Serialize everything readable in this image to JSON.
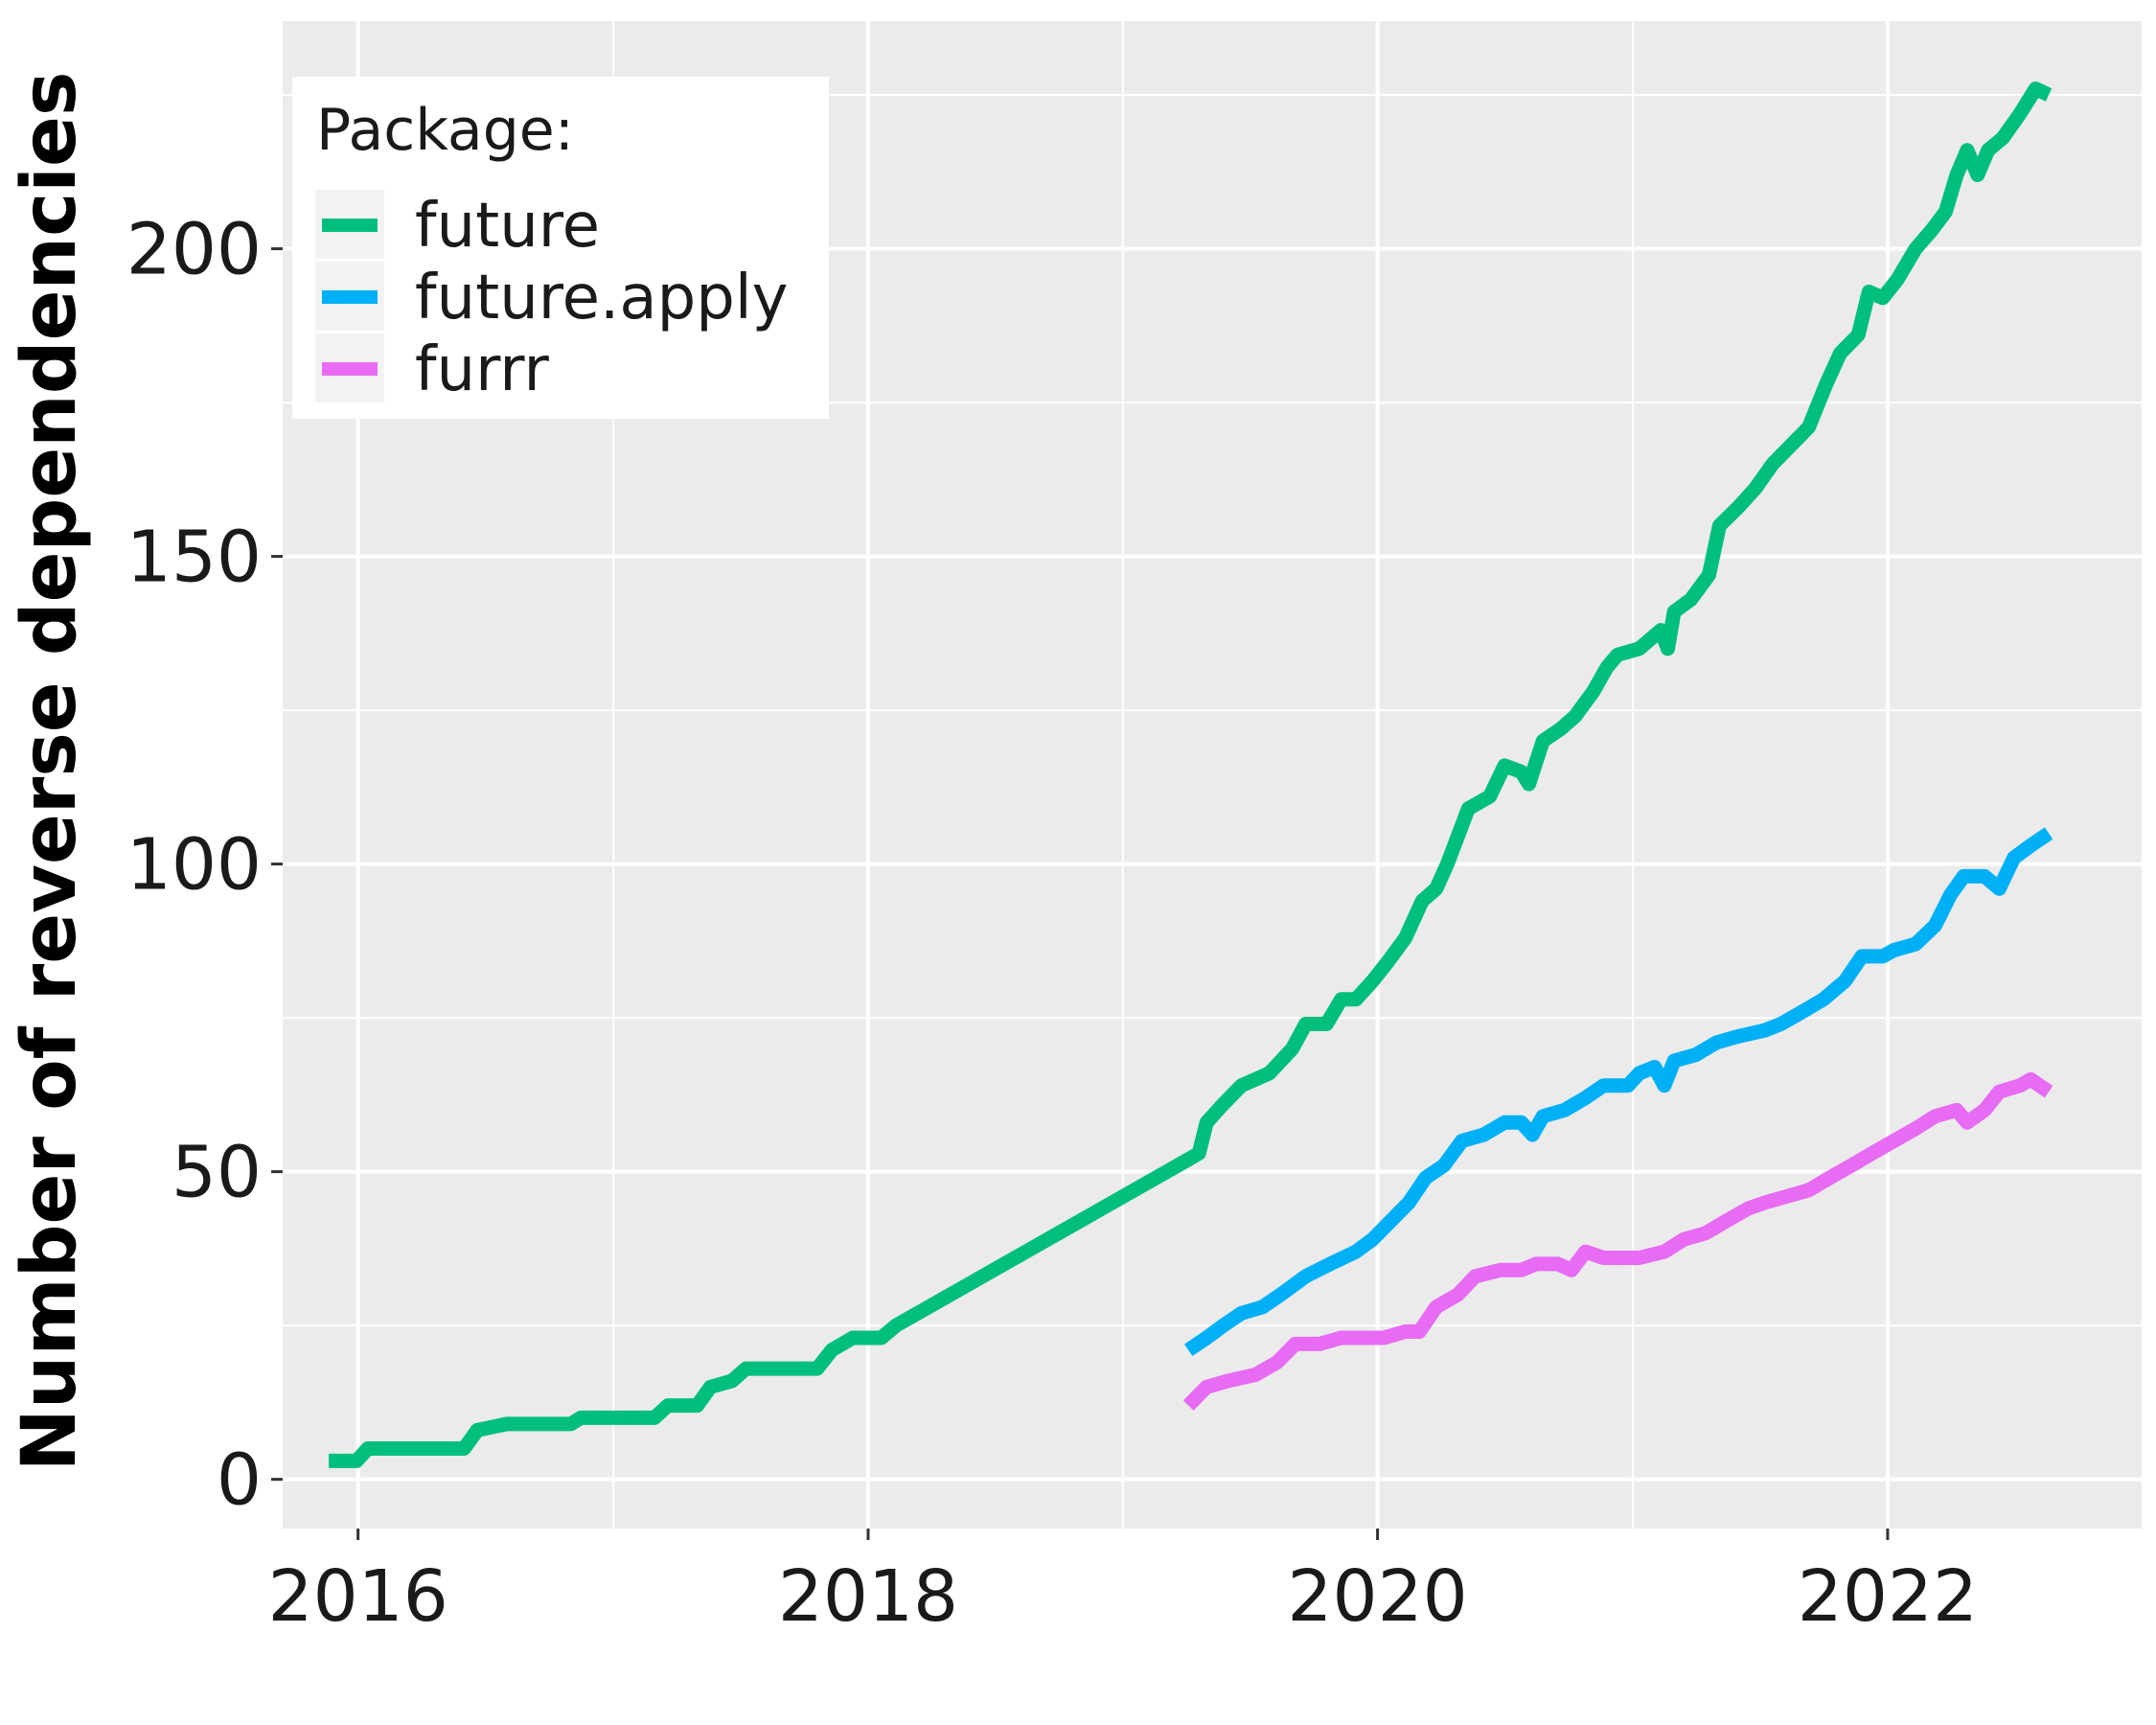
{
  "chart_data": {
    "type": "line",
    "title": "",
    "xlabel": "",
    "ylabel": "Number of reverse dependencies",
    "xlim": [
      "2015-09-15",
      "2022-12-31"
    ],
    "ylim": [
      -8,
      237
    ],
    "x_ticks": [
      {
        "date": "2016-01-01",
        "label": "2016"
      },
      {
        "date": "2018-01-01",
        "label": "2018"
      },
      {
        "date": "2020-01-01",
        "label": "2020"
      },
      {
        "date": "2022-01-01",
        "label": "2022"
      }
    ],
    "x_minor_ticks": [
      "2017-01-01",
      "2019-01-01",
      "2021-01-01"
    ],
    "y_ticks": [
      0,
      50,
      100,
      150,
      200
    ],
    "y_minor_ticks": [
      25,
      75,
      125,
      175,
      225
    ],
    "grid": true,
    "legend": {
      "title": "Package:",
      "position": "top-left"
    },
    "series": [
      {
        "name": "future",
        "color": "#00BF7D",
        "points": [
          [
            "2015-11-20",
            3
          ],
          [
            "2015-12-30",
            3
          ],
          [
            "2016-01-15",
            5
          ],
          [
            "2016-06-01",
            5
          ],
          [
            "2016-06-20",
            8
          ],
          [
            "2016-08-01",
            9
          ],
          [
            "2016-11-01",
            9
          ],
          [
            "2016-11-15",
            10
          ],
          [
            "2017-03-01",
            10
          ],
          [
            "2017-03-20",
            12
          ],
          [
            "2017-05-01",
            12
          ],
          [
            "2017-05-20",
            15
          ],
          [
            "2017-06-20",
            16
          ],
          [
            "2017-07-10",
            18
          ],
          [
            "2017-10-20",
            18
          ],
          [
            "2017-11-10",
            21
          ],
          [
            "2017-12-10",
            23
          ],
          [
            "2018-01-20",
            23
          ],
          [
            "2018-02-10",
            25
          ],
          [
            "2019-04-05",
            52
          ],
          [
            "2019-04-20",
            53
          ],
          [
            "2019-05-01",
            58
          ],
          [
            "2019-05-25",
            61
          ],
          [
            "2019-06-20",
            64
          ],
          [
            "2019-07-30",
            66
          ],
          [
            "2019-09-01",
            70
          ],
          [
            "2019-09-20",
            74
          ],
          [
            "2019-10-20",
            74
          ],
          [
            "2019-11-10",
            78
          ],
          [
            "2019-12-01",
            78
          ],
          [
            "2019-12-25",
            81
          ],
          [
            "2020-01-15",
            84
          ],
          [
            "2020-02-10",
            88
          ],
          [
            "2020-03-05",
            94
          ],
          [
            "2020-03-25",
            96
          ],
          [
            "2020-04-10",
            100
          ],
          [
            "2020-05-10",
            109
          ],
          [
            "2020-06-10",
            111
          ],
          [
            "2020-07-01",
            116
          ],
          [
            "2020-07-25",
            115
          ],
          [
            "2020-08-05",
            113
          ],
          [
            "2020-08-25",
            120
          ],
          [
            "2020-09-20",
            122
          ],
          [
            "2020-10-10",
            124
          ],
          [
            "2020-11-05",
            128
          ],
          [
            "2020-11-25",
            132
          ],
          [
            "2020-12-10",
            134
          ],
          [
            "2021-01-10",
            135
          ],
          [
            "2021-02-10",
            138
          ],
          [
            "2021-02-20",
            135
          ],
          [
            "2021-03-01",
            141
          ],
          [
            "2021-03-25",
            143
          ],
          [
            "2021-04-20",
            147
          ],
          [
            "2021-05-05",
            155
          ],
          [
            "2021-06-01",
            158
          ],
          [
            "2021-06-25",
            161
          ],
          [
            "2021-07-20",
            165
          ],
          [
            "2021-08-15",
            168
          ],
          [
            "2021-09-10",
            171
          ],
          [
            "2021-10-05",
            178
          ],
          [
            "2021-10-25",
            183
          ],
          [
            "2021-11-20",
            186
          ],
          [
            "2021-12-05",
            193
          ],
          [
            "2021-12-25",
            192
          ],
          [
            "2022-01-15",
            195
          ],
          [
            "2022-02-10",
            200
          ],
          [
            "2022-03-05",
            203
          ],
          [
            "2022-03-25",
            206
          ],
          [
            "2022-04-10",
            212
          ],
          [
            "2022-04-25",
            216
          ],
          [
            "2022-05-10",
            212
          ],
          [
            "2022-05-25",
            216
          ],
          [
            "2022-06-15",
            218
          ],
          [
            "2022-07-10",
            222
          ],
          [
            "2022-08-01",
            226
          ],
          [
            "2022-08-20",
            225
          ]
        ]
      },
      {
        "name": "future.apply",
        "color": "#00B0F6",
        "points": [
          [
            "2019-04-05",
            21
          ],
          [
            "2019-05-01",
            23
          ],
          [
            "2019-05-25",
            25
          ],
          [
            "2019-06-20",
            27
          ],
          [
            "2019-07-20",
            28
          ],
          [
            "2019-08-15",
            30
          ],
          [
            "2019-09-20",
            33
          ],
          [
            "2019-10-25",
            35
          ],
          [
            "2019-12-01",
            37
          ],
          [
            "2019-12-25",
            39
          ],
          [
            "2020-01-20",
            42
          ],
          [
            "2020-02-15",
            45
          ],
          [
            "2020-03-10",
            49
          ],
          [
            "2020-04-05",
            51
          ],
          [
            "2020-05-01",
            55
          ],
          [
            "2020-06-01",
            56
          ],
          [
            "2020-07-01",
            58
          ],
          [
            "2020-07-25",
            58
          ],
          [
            "2020-08-10",
            56
          ],
          [
            "2020-08-25",
            59
          ],
          [
            "2020-09-25",
            60
          ],
          [
            "2020-10-25",
            62
          ],
          [
            "2020-11-20",
            64
          ],
          [
            "2020-12-25",
            64
          ],
          [
            "2021-01-10",
            66
          ],
          [
            "2021-02-01",
            67
          ],
          [
            "2021-02-15",
            64
          ],
          [
            "2021-03-01",
            68
          ],
          [
            "2021-04-01",
            69
          ],
          [
            "2021-05-01",
            71
          ],
          [
            "2021-06-01",
            72
          ],
          [
            "2021-07-10",
            73
          ],
          [
            "2021-08-01",
            74
          ],
          [
            "2021-09-01",
            76
          ],
          [
            "2021-10-01",
            78
          ],
          [
            "2021-11-01",
            81
          ],
          [
            "2021-11-25",
            85
          ],
          [
            "2021-12-25",
            85
          ],
          [
            "2022-01-10",
            86
          ],
          [
            "2022-02-10",
            87
          ],
          [
            "2022-03-10",
            90
          ],
          [
            "2022-04-01",
            95
          ],
          [
            "2022-04-20",
            98
          ],
          [
            "2022-05-20",
            98
          ],
          [
            "2022-06-10",
            96
          ],
          [
            "2022-07-01",
            101
          ],
          [
            "2022-07-25",
            103
          ],
          [
            "2022-08-20",
            105
          ]
        ]
      },
      {
        "name": "furrr",
        "color": "#E76BF3",
        "points": [
          [
            "2019-04-05",
            12
          ],
          [
            "2019-05-01",
            15
          ],
          [
            "2019-06-01",
            16
          ],
          [
            "2019-07-10",
            17
          ],
          [
            "2019-08-10",
            19
          ],
          [
            "2019-09-05",
            22
          ],
          [
            "2019-10-10",
            22
          ],
          [
            "2019-11-10",
            23
          ],
          [
            "2019-12-10",
            23
          ],
          [
            "2020-01-10",
            23
          ],
          [
            "2020-02-10",
            24
          ],
          [
            "2020-03-01",
            24
          ],
          [
            "2020-03-25",
            28
          ],
          [
            "2020-04-25",
            30
          ],
          [
            "2020-05-20",
            33
          ],
          [
            "2020-06-25",
            34
          ],
          [
            "2020-07-25",
            34
          ],
          [
            "2020-08-15",
            35
          ],
          [
            "2020-09-15",
            35
          ],
          [
            "2020-10-05",
            34
          ],
          [
            "2020-10-25",
            37
          ],
          [
            "2020-11-20",
            36
          ],
          [
            "2020-12-10",
            36
          ],
          [
            "2021-01-10",
            36
          ],
          [
            "2021-02-15",
            37
          ],
          [
            "2021-03-15",
            39
          ],
          [
            "2021-04-15",
            40
          ],
          [
            "2021-05-15",
            42
          ],
          [
            "2021-06-15",
            44
          ],
          [
            "2021-07-10",
            45
          ],
          [
            "2021-08-10",
            46
          ],
          [
            "2021-09-10",
            47
          ],
          [
            "2021-10-10",
            49
          ],
          [
            "2021-11-10",
            51
          ],
          [
            "2021-12-10",
            53
          ],
          [
            "2022-01-10",
            55
          ],
          [
            "2022-02-10",
            57
          ],
          [
            "2022-03-10",
            59
          ],
          [
            "2022-04-10",
            60
          ],
          [
            "2022-04-25",
            58
          ],
          [
            "2022-05-20",
            60
          ],
          [
            "2022-06-10",
            63
          ],
          [
            "2022-07-10",
            64
          ],
          [
            "2022-07-25",
            65
          ],
          [
            "2022-08-20",
            63
          ]
        ]
      }
    ]
  }
}
